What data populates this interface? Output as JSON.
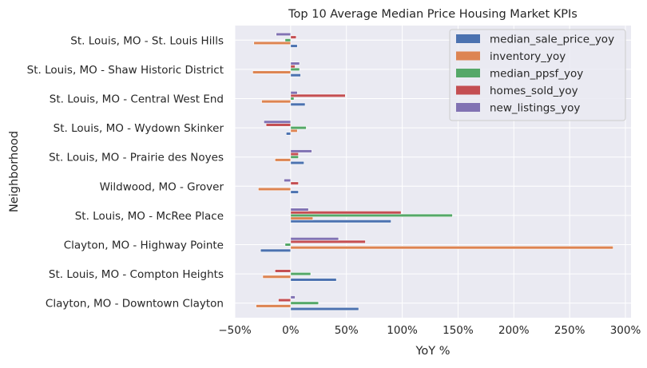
{
  "chart_data": {
    "type": "bar",
    "orientation": "horizontal",
    "title": "Top 10 Average Median Price Housing Market KPIs",
    "xlabel": "YoY %",
    "ylabel": "Neighborhood",
    "xlim": [
      -0.5,
      3.05
    ],
    "xticks": [
      -0.5,
      0,
      0.5,
      1.0,
      1.5,
      2.0,
      2.5,
      3.0
    ],
    "xtick_labels": [
      "−50%",
      "0%",
      "50%",
      "100%",
      "150%",
      "200%",
      "250%",
      "300%"
    ],
    "grid": true,
    "legend_position": "top-right",
    "categories": [
      "Clayton, MO - Downtown Clayton",
      "St. Louis, MO - Compton Heights",
      "Clayton, MO - Highway Pointe",
      "St. Louis, MO - McRee Place",
      "Wildwood, MO - Grover",
      "St. Louis, MO - Prairie des Noyes",
      "St. Louis, MO - Wydown Skinker",
      "St. Louis, MO - Central West End",
      "St. Louis, MO - Shaw Historic District",
      "St. Louis, MO - St. Louis Hills"
    ],
    "series": [
      {
        "name": "median_sale_price_yoy",
        "color": "#4C72B0",
        "values": [
          0.61,
          0.41,
          -0.27,
          0.9,
          0.07,
          0.12,
          -0.04,
          0.13,
          0.09,
          0.06
        ]
      },
      {
        "name": "inventory_yoy",
        "color": "#DD8452",
        "values": [
          -0.31,
          -0.25,
          2.89,
          0.2,
          -0.29,
          -0.14,
          0.06,
          -0.26,
          -0.34,
          -0.33
        ]
      },
      {
        "name": "median_ppsf_yoy",
        "color": "#55A868",
        "values": [
          0.25,
          0.18,
          -0.05,
          1.45,
          0.0,
          0.07,
          0.14,
          0.03,
          0.08,
          -0.05
        ]
      },
      {
        "name": "homes_sold_yoy",
        "color": "#C44E52",
        "values": [
          -0.11,
          -0.14,
          0.67,
          0.99,
          0.07,
          0.07,
          -0.22,
          0.49,
          0.04,
          0.05
        ]
      },
      {
        "name": "new_listings_yoy",
        "color": "#8172B3",
        "values": [
          0.04,
          0.0,
          0.43,
          0.16,
          -0.06,
          0.19,
          -0.24,
          0.06,
          0.08,
          -0.13
        ]
      }
    ]
  }
}
